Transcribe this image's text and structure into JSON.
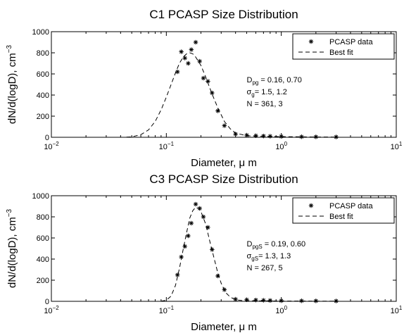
{
  "chart_data": [
    {
      "type": "scatter",
      "title": "C1 PCASP Size Distribution",
      "xlabel": "Diameter, μ m",
      "ylabel": "dN/d(logD), cm",
      "ylabel_sup": "−3",
      "xscale": "log",
      "xlim": [
        0.01,
        10
      ],
      "ylim": [
        0,
        1000
      ],
      "yticks": [
        "0",
        "200",
        "400",
        "600",
        "800",
        "1000"
      ],
      "xticks": [
        {
          "base": "10",
          "exp": "−2"
        },
        {
          "base": "10",
          "exp": "−1"
        },
        {
          "base": "10",
          "exp": "0"
        },
        {
          "base": "10",
          "exp": "1"
        }
      ],
      "grid": false,
      "legend_position": "top-right",
      "series": [
        {
          "name": "PCASP data",
          "style": "star-markers",
          "x": [
            0.125,
            0.135,
            0.145,
            0.155,
            0.165,
            0.18,
            0.195,
            0.21,
            0.23,
            0.25,
            0.28,
            0.32,
            0.4,
            0.5,
            0.6,
            0.7,
            0.8,
            1.0,
            1.5,
            2.0,
            3.0
          ],
          "y": [
            620,
            810,
            750,
            700,
            830,
            900,
            720,
            560,
            530,
            420,
            250,
            110,
            30,
            20,
            15,
            12,
            10,
            8,
            5,
            4,
            3
          ]
        },
        {
          "name": "Best fit",
          "style": "dashed",
          "x": [
            0.045,
            0.05,
            0.06,
            0.07,
            0.08,
            0.09,
            0.1,
            0.11,
            0.12,
            0.13,
            0.14,
            0.15,
            0.16,
            0.17,
            0.18,
            0.2,
            0.22,
            0.25,
            0.28,
            0.32,
            0.36,
            0.4,
            0.5,
            0.6,
            0.8,
            1.0,
            2.0,
            3.0
          ],
          "y": [
            1,
            4,
            25,
            70,
            150,
            260,
            380,
            500,
            610,
            700,
            760,
            790,
            800,
            790,
            760,
            680,
            570,
            410,
            280,
            150,
            80,
            40,
            15,
            10,
            8,
            6,
            3,
            2
          ]
        }
      ],
      "annotations": [
        {
          "base": "D",
          "sub": "pg",
          "value": " = 0.16, 0.70"
        },
        {
          "base": "σ",
          "sub": "g",
          "value": "= 1.5, 1.2"
        },
        {
          "base": "N",
          "sub": "",
          "value": " = 361, 3"
        }
      ]
    },
    {
      "type": "scatter",
      "title": "C3 PCASP Size Distribution",
      "xlabel": "Diameter, μ m",
      "ylabel": "dN/d(logD), cm",
      "ylabel_sup": "−3",
      "xscale": "log",
      "xlim": [
        0.01,
        10
      ],
      "ylim": [
        0,
        1000
      ],
      "yticks": [
        "0",
        "200",
        "400",
        "600",
        "800",
        "1000"
      ],
      "xticks": [
        {
          "base": "10",
          "exp": "−2"
        },
        {
          "base": "10",
          "exp": "−1"
        },
        {
          "base": "10",
          "exp": "0"
        },
        {
          "base": "10",
          "exp": "1"
        }
      ],
      "grid": false,
      "legend_position": "top-right",
      "series": [
        {
          "name": "PCASP data",
          "style": "star-markers",
          "x": [
            0.125,
            0.135,
            0.145,
            0.155,
            0.165,
            0.18,
            0.195,
            0.21,
            0.23,
            0.25,
            0.28,
            0.32,
            0.4,
            0.5,
            0.6,
            0.7,
            0.8,
            1.0,
            1.5,
            2.0,
            3.0
          ],
          "y": [
            250,
            420,
            520,
            620,
            740,
            920,
            880,
            800,
            700,
            490,
            240,
            110,
            20,
            15,
            12,
            10,
            8,
            6,
            5,
            4,
            3
          ]
        },
        {
          "name": "Best fit",
          "style": "dashed",
          "x": [
            0.09,
            0.1,
            0.11,
            0.12,
            0.13,
            0.14,
            0.15,
            0.16,
            0.17,
            0.18,
            0.19,
            0.2,
            0.22,
            0.24,
            0.26,
            0.28,
            0.3,
            0.33,
            0.36,
            0.4,
            0.45,
            0.5,
            0.6,
            0.8,
            1.0,
            2.0,
            3.0
          ],
          "y": [
            2,
            10,
            50,
            150,
            310,
            490,
            650,
            790,
            860,
            890,
            880,
            850,
            730,
            560,
            410,
            270,
            170,
            80,
            40,
            15,
            8,
            6,
            5,
            4,
            3,
            2,
            2
          ]
        }
      ],
      "annotations": [
        {
          "base": "D",
          "sub": "pgS",
          "value": " = 0.19, 0.60"
        },
        {
          "base": "σ",
          "sub": "gS",
          "value": "= 1.3, 1.3"
        },
        {
          "base": "N",
          "sub": "",
          "value": " = 267, 5"
        }
      ]
    }
  ]
}
